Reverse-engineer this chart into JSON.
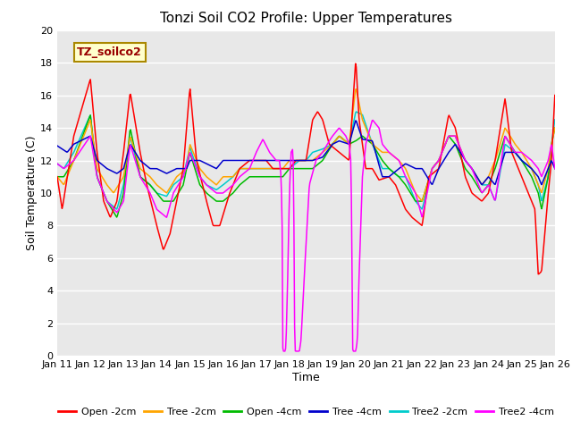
{
  "title": "Tonzi Soil CO2 Profile: Upper Temperatures",
  "xlabel": "Time",
  "ylabel": "Soil Temperature (C)",
  "ylim": [
    0,
    20
  ],
  "xlim": [
    0,
    15
  ],
  "x_tick_labels": [
    "Jan 11",
    "Jan 12",
    "Jan 13",
    "Jan 14",
    "Jan 15",
    "Jan 16",
    "Jan 17",
    "Jan 18",
    "Jan 19",
    "Jan 20",
    "Jan 21",
    "Jan 22",
    "Jan 23",
    "Jan 24",
    "Jan 25",
    "Jan 26"
  ],
  "legend_label": "TZ_soilco2",
  "series_labels": [
    "Open -2cm",
    "Tree -2cm",
    "Open -4cm",
    "Tree -4cm",
    "Tree2 -2cm",
    "Tree2 -4cm"
  ],
  "series_colors": [
    "#ff0000",
    "#ffa500",
    "#00bb00",
    "#0000cc",
    "#00cccc",
    "#ff00ff"
  ],
  "plot_bg_color": "#e8e8e8",
  "title_fontsize": 11,
  "axis_label_fontsize": 9,
  "tick_fontsize": 8
}
